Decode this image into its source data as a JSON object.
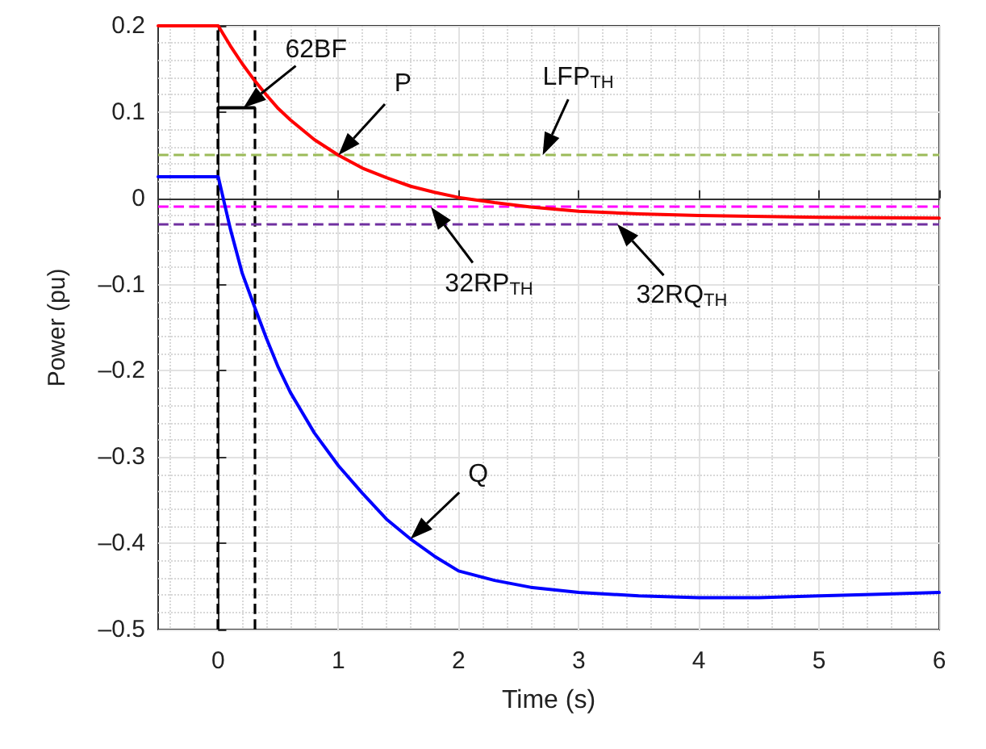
{
  "chart_data": {
    "type": "line",
    "xlabel": "Time (s)",
    "ylabel": "Power (pu)",
    "series": [
      {
        "name": "P",
        "color": "#ff0000",
        "x": [
          -0.5,
          0,
          0.1,
          0.2,
          0.3,
          0.4,
          0.5,
          0.6,
          0.8,
          1,
          1.2,
          1.4,
          1.6,
          1.8,
          2,
          2.3,
          2.6,
          3,
          3.5,
          4,
          5,
          6
        ],
        "values": [
          0.2,
          0.2,
          0.177,
          0.156,
          0.137,
          0.12,
          0.104,
          0.091,
          0.068,
          0.05,
          0.035,
          0.024,
          0.014,
          0.007,
          0.001,
          -0.005,
          -0.01,
          -0.015,
          -0.018,
          -0.02,
          -0.022,
          -0.023
        ]
      },
      {
        "name": "Q",
        "color": "#0000ff",
        "x": [
          -0.5,
          0,
          0.1,
          0.2,
          0.3,
          0.4,
          0.5,
          0.6,
          0.8,
          1,
          1.2,
          1.4,
          1.6,
          1.8,
          2,
          2.3,
          2.6,
          3,
          3.5,
          4,
          4.5,
          5,
          5.5,
          6
        ],
        "values": [
          0.025,
          0.025,
          -0.035,
          -0.087,
          -0.125,
          -0.162,
          -0.196,
          -0.225,
          -0.272,
          -0.31,
          -0.342,
          -0.372,
          -0.395,
          -0.415,
          -0.432,
          -0.443,
          -0.451,
          -0.457,
          -0.461,
          -0.463,
          -0.463,
          -0.461,
          -0.459,
          -0.457
        ]
      },
      {
        "color": "#000000",
        "x": [
          0,
          0.3
        ],
        "values": [
          0.105,
          0.105
        ]
      }
    ],
    "ref_lines": [
      {
        "axis": "x",
        "value": 0,
        "color": "#000000",
        "line_style": "dashed"
      },
      {
        "axis": "x",
        "value": 0.3,
        "color": "#000000",
        "line_style": "dashed"
      },
      {
        "axis": "y",
        "value": 0.05,
        "color": "#9bbb59",
        "line_style": "dashed"
      },
      {
        "axis": "y",
        "value": -0.01,
        "color": "#ff00ff",
        "line_style": "dashed"
      },
      {
        "axis": "y",
        "value": -0.03,
        "color": "#7030a0",
        "line_style": "dashed"
      }
    ],
    "annotations": [
      {
        "text": "62BF",
        "x": 0.21,
        "y": 0.105
      },
      {
        "text": "LFP$_{TH}$",
        "x": 2.7,
        "y": 0.05
      },
      {
        "text": "32RP$_{TH}$",
        "x": 1.77,
        "y": -0.01
      },
      {
        "text": "32RQ$_{TH}$",
        "x": 3.32,
        "y": -0.03
      }
    ],
    "xlim": [
      -0.5,
      6
    ],
    "xticks": [
      0,
      1,
      2,
      3,
      4,
      5,
      6
    ],
    "ylim": [
      -0.5,
      0.2
    ],
    "yticks": [
      {
        "value": -0.5,
        "label": "–0.5"
      },
      {
        "value": -0.4,
        "label": "–0.4"
      },
      {
        "value": -0.3,
        "label": "–0.3"
      },
      {
        "value": -0.2,
        "label": "–0.2"
      },
      {
        "value": -0.1,
        "label": "–0.1"
      },
      0,
      0.1,
      0.2
    ],
    "grid": true,
    "marker": "none",
    "line_style": "solid"
  }
}
